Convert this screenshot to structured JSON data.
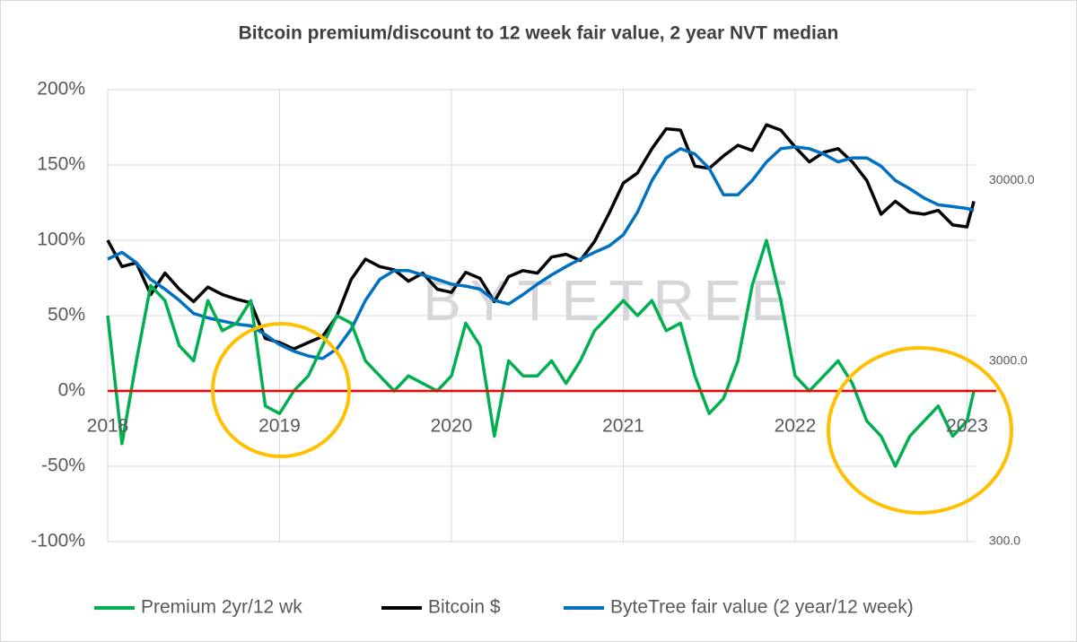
{
  "chart_data": {
    "type": "line",
    "title": "Bitcoin premium/discount to 12 week fair value, 2 year NVT median",
    "watermark": "BYTETREE",
    "x": [
      2018,
      2018.083,
      2018.167,
      2018.25,
      2018.333,
      2018.417,
      2018.5,
      2018.583,
      2018.667,
      2018.75,
      2018.833,
      2018.917,
      2019,
      2019.083,
      2019.167,
      2019.25,
      2019.333,
      2019.417,
      2019.5,
      2019.583,
      2019.667,
      2019.75,
      2019.833,
      2019.917,
      2020,
      2020.083,
      2020.167,
      2020.25,
      2020.333,
      2020.417,
      2020.5,
      2020.583,
      2020.667,
      2020.75,
      2020.833,
      2020.917,
      2021,
      2021.083,
      2021.167,
      2021.25,
      2021.333,
      2021.417,
      2021.5,
      2021.583,
      2021.667,
      2021.75,
      2021.833,
      2021.917,
      2022,
      2022.083,
      2022.167,
      2022.25,
      2022.333,
      2022.417,
      2022.5,
      2022.583,
      2022.667,
      2022.75,
      2022.833,
      2022.917,
      2023,
      2023.04
    ],
    "xlim": [
      2018,
      2023.05
    ],
    "xticks": [
      2018,
      2019,
      2020,
      2021,
      2022,
      2023
    ],
    "ylim": [
      -100,
      200
    ],
    "yticks": [
      {
        "value": -100,
        "label": "-100%"
      },
      {
        "value": -50,
        "label": "-50%"
      },
      {
        "value": 0,
        "label": "0%"
      },
      {
        "value": 50,
        "label": "50%"
      },
      {
        "value": 100,
        "label": "100%"
      },
      {
        "value": 150,
        "label": "150%"
      },
      {
        "value": 200,
        "label": "200%"
      }
    ],
    "y2lim": [
      300,
      95500
    ],
    "y2scale": "log",
    "y2ticks": [
      {
        "value": 300,
        "label": "300.0"
      },
      {
        "value": 3000,
        "label": "3000.0"
      },
      {
        "value": 30000,
        "label": "30000.0"
      }
    ],
    "grid": true,
    "reference_line": {
      "value": 0,
      "color": "#ff0000"
    },
    "legend": "bottom",
    "series": [
      {
        "name": "Premium 2yr/12 wk",
        "color": "#00b050",
        "values": [
          50,
          -35,
          20,
          70,
          60,
          30,
          20,
          60,
          40,
          45,
          60,
          -10,
          -15,
          0,
          10,
          30,
          50,
          45,
          20,
          10,
          0,
          10,
          5,
          0,
          10,
          45,
          30,
          -30,
          20,
          10,
          10,
          20,
          5,
          20,
          40,
          50,
          60,
          50,
          60,
          40,
          45,
          10,
          -15,
          -5,
          20,
          70,
          100,
          60,
          10,
          0,
          10,
          20,
          5,
          -20,
          -30,
          -50,
          -30,
          -20,
          -10,
          -30,
          -20,
          0
        ]
      },
      {
        "name": "Bitcoin $",
        "color": "#000000",
        "axis": "y2",
        "values": [
          14000,
          10000,
          10500,
          7000,
          9200,
          7500,
          6400,
          7700,
          7000,
          6600,
          6300,
          4000,
          3800,
          3500,
          3800,
          4100,
          5300,
          8500,
          11000,
          10000,
          9600,
          8300,
          9200,
          7500,
          7200,
          9300,
          8600,
          6400,
          8800,
          9500,
          9200,
          11300,
          11700,
          10800,
          13800,
          19700,
          29000,
          33000,
          45000,
          58000,
          57000,
          36000,
          35000,
          41000,
          47000,
          44000,
          61000,
          57000,
          46000,
          38000,
          43000,
          45000,
          38000,
          30000,
          19500,
          23000,
          20000,
          19500,
          20500,
          17000,
          16600,
          23000
        ]
      },
      {
        "name": "ByteTree fair value (2 year/12 week)",
        "color": "#0070c0",
        "axis": "y2",
        "values": [
          11000,
          12000,
          10500,
          8500,
          7500,
          6500,
          5500,
          5200,
          5000,
          4800,
          4700,
          4200,
          3700,
          3400,
          3200,
          3100,
          3500,
          4500,
          6500,
          8500,
          9500,
          9500,
          9000,
          8500,
          8000,
          7800,
          7500,
          6500,
          6200,
          7000,
          8000,
          9000,
          10000,
          11000,
          12000,
          13000,
          15000,
          20000,
          30000,
          40000,
          45000,
          42000,
          35000,
          25000,
          25000,
          30000,
          38000,
          45000,
          46000,
          45000,
          42000,
          38000,
          40000,
          40000,
          36000,
          30000,
          27000,
          24000,
          22000,
          21500,
          21000,
          20500
        ]
      }
    ]
  }
}
